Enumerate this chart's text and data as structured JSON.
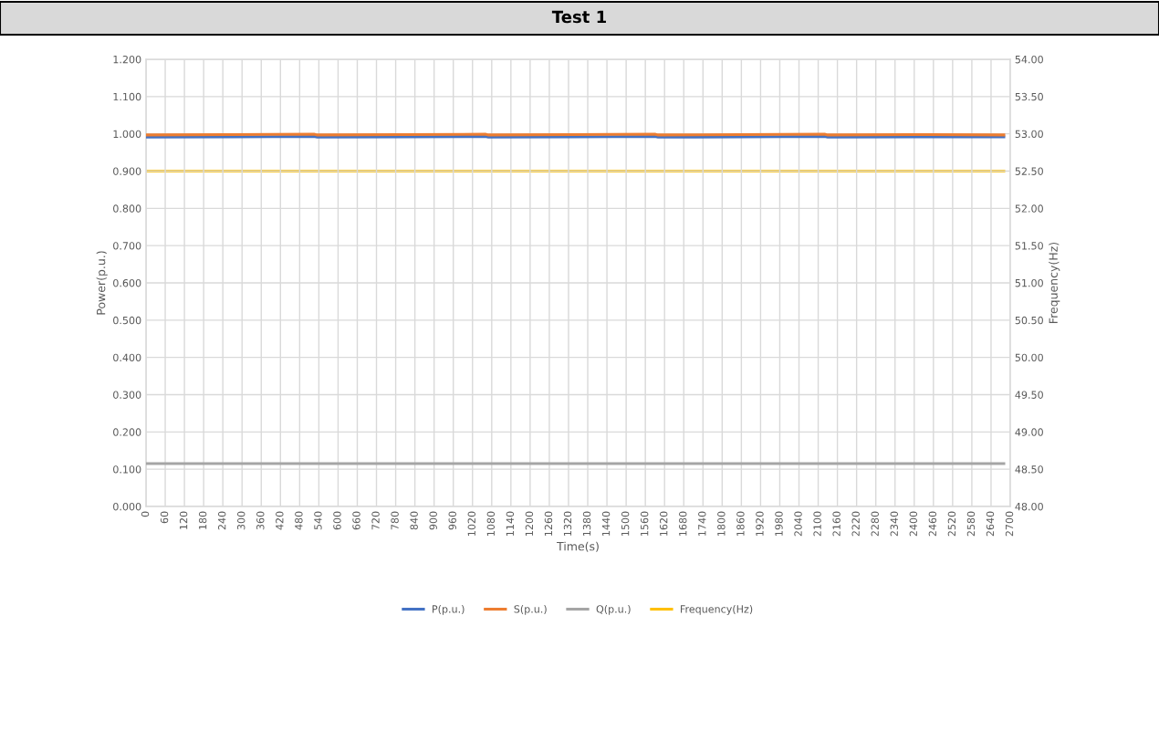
{
  "chart_data": {
    "type": "line",
    "title": "Test 1",
    "xlabel": "Time(s)",
    "ylabel": "Power(p.u.)",
    "y2label": "Frequency(Hz)",
    "series": [
      {
        "name": "P(p.u.)",
        "color": "#4472c4",
        "x": [
          0,
          260,
          525,
          535,
          800,
          1060,
          1070,
          1330,
          1590,
          1600,
          1860,
          2120,
          2130,
          2400,
          2680
        ],
        "values": [
          0.991,
          0.992,
          0.993,
          0.991,
          0.992,
          0.993,
          0.991,
          0.992,
          0.993,
          0.991,
          0.992,
          0.993,
          0.991,
          0.992,
          0.992
        ]
      },
      {
        "name": "S(p.u.)",
        "color": "#ed7d31",
        "x": [
          0,
          260,
          525,
          535,
          800,
          1060,
          1070,
          1330,
          1590,
          1600,
          1860,
          2120,
          2130,
          2400,
          2680
        ],
        "values": [
          0.997,
          0.998,
          0.999,
          0.997,
          0.998,
          0.999,
          0.997,
          0.998,
          0.999,
          0.997,
          0.998,
          0.999,
          0.997,
          0.998,
          0.997
        ]
      },
      {
        "name": "Q(p.u.)",
        "color": "#a5a5a5",
        "x": [
          0,
          2680
        ],
        "values": [
          0.115,
          0.115
        ]
      },
      {
        "name": "Frequency(Hz)",
        "color": "#ffc000",
        "axis": "y2",
        "x": [
          0,
          2680
        ],
        "values": [
          52.5,
          52.5
        ]
      }
    ],
    "xlim": [
      0,
      2700
    ],
    "xticks": [
      0,
      60,
      120,
      180,
      240,
      300,
      360,
      420,
      480,
      540,
      600,
      660,
      720,
      780,
      840,
      900,
      960,
      1020,
      1080,
      1140,
      1200,
      1260,
      1320,
      1380,
      1440,
      1500,
      1560,
      1620,
      1680,
      1740,
      1800,
      1860,
      1920,
      1980,
      2040,
      2100,
      2160,
      2220,
      2280,
      2340,
      2400,
      2460,
      2520,
      2580,
      2640,
      2700
    ],
    "ylim": [
      0,
      1.2
    ],
    "yticks": [
      {
        "value": 0,
        "label": "0.000"
      },
      {
        "value": 0.1,
        "label": "0.100"
      },
      {
        "value": 0.2,
        "label": "0.200"
      },
      {
        "value": 0.3,
        "label": "0.300"
      },
      {
        "value": 0.4,
        "label": "0.400"
      },
      {
        "value": 0.5,
        "label": "0.500"
      },
      {
        "value": 0.6,
        "label": "0.600"
      },
      {
        "value": 0.7,
        "label": "0.700"
      },
      {
        "value": 0.8,
        "label": "0.800"
      },
      {
        "value": 0.9,
        "label": "0.900"
      },
      {
        "value": 1.0,
        "label": "1.000"
      },
      {
        "value": 1.1,
        "label": "1.100"
      },
      {
        "value": 1.2,
        "label": "1.200"
      }
    ],
    "y2lim": [
      48,
      54
    ],
    "y2ticks": [
      {
        "value": 48,
        "label": "48.00"
      },
      {
        "value": 48.5,
        "label": "48.50"
      },
      {
        "value": 49,
        "label": "49.00"
      },
      {
        "value": 49.5,
        "label": "49.50"
      },
      {
        "value": 50,
        "label": "50.00"
      },
      {
        "value": 50.5,
        "label": "50.50"
      },
      {
        "value": 51,
        "label": "51.00"
      },
      {
        "value": 51.5,
        "label": "51.50"
      },
      {
        "value": 52,
        "label": "52.00"
      },
      {
        "value": 52.5,
        "label": "52.50"
      },
      {
        "value": 53,
        "label": "53.00"
      },
      {
        "value": 53.5,
        "label": "53.50"
      },
      {
        "value": 54,
        "label": "54.00"
      }
    ],
    "grid": true,
    "legend": "bottom",
    "marker": "none",
    "line_style": "solid"
  }
}
